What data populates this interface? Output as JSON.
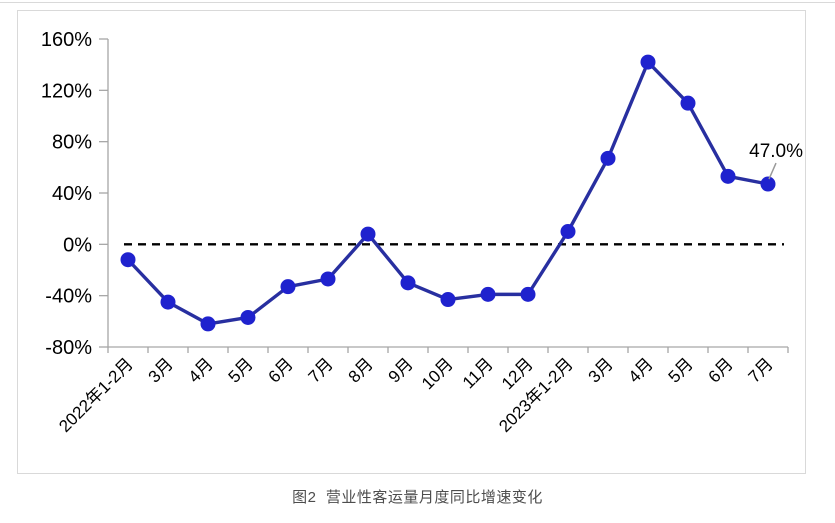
{
  "chart_data": {
    "type": "line",
    "title": "",
    "caption": "图2  营业性客运量月度同比增速变化",
    "categories": [
      "2022年1-2月",
      "3月",
      "4月",
      "5月",
      "6月",
      "7月",
      "8月",
      "9月",
      "10月",
      "11月",
      "12月",
      "2023年1-2月",
      "3月",
      "4月",
      "5月",
      "6月",
      "7月"
    ],
    "values": [
      -12,
      -45,
      -62,
      -57,
      -33,
      -27,
      8,
      -30,
      -43,
      -39,
      -39,
      10,
      67,
      142,
      110,
      53,
      47
    ],
    "xlabel": "",
    "ylabel": "",
    "ylim": [
      -80,
      160
    ],
    "yticks": [
      160,
      120,
      80,
      40,
      0,
      -40,
      -80
    ],
    "ytick_suffix": "%",
    "grid": false,
    "legend": false,
    "zero_reference_line": "dashed-black",
    "annotation": {
      "text": "47.0%",
      "index": 16,
      "value": 47.0
    },
    "colors": {
      "line": "#282FA0",
      "marker": "#1F22CE",
      "axis": "#A6A6A6",
      "zero_line": "#000000",
      "leader": "#999999",
      "tick_label": "#000000",
      "caption_text": "#4D4D4D",
      "frame_border": "#D9D9D9"
    }
  }
}
